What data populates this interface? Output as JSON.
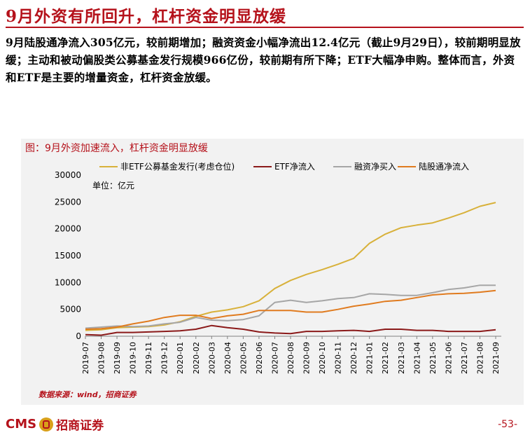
{
  "page": {
    "title": "9月外资有所回升，杠杆资金明显放缓",
    "summary": "9月陆股通净流入305亿元，较前期增加；融资资金小幅净流出12.4亿元（截止9月29日），较前期明显放缓；主动和被动偏股类公募基金发行规模966亿份，较前期有所下降；ETF大幅净申购。整体而言，外资和ETF是主要的增量资金，杠杆资金放缓。",
    "source": "数据来源：wind，招商证券",
    "logo_text": "CMS",
    "logo_name": "招商证券",
    "page_number": "-53-"
  },
  "colors": {
    "accent": "#b5121b",
    "series": [
      "#d8b13a",
      "#8b1a1a",
      "#a6a6a6",
      "#e07b1f"
    ]
  },
  "chart_data": {
    "type": "line",
    "title": "图：9月外资加速流入，杠杆资金明显放缓",
    "unit_label": "单位：亿元",
    "xlabel": "",
    "ylabel": "",
    "ylim": [
      0,
      30000
    ],
    "yticks": [
      0,
      5000,
      10000,
      15000,
      20000,
      25000,
      30000
    ],
    "legend_position": "top",
    "categories": [
      "2019-07",
      "2019-08",
      "2019-09",
      "2019-10",
      "2019-11",
      "2019-12",
      "2020-01",
      "2020-02",
      "2020-03",
      "2020-04",
      "2020-05",
      "2020-06",
      "2020-07",
      "2020-08",
      "2020-09",
      "2020-10",
      "2020-11",
      "2020-12",
      "2021-01",
      "2021-02",
      "2021-03",
      "2021-04",
      "2021-05",
      "2021-06",
      "2021-07",
      "2021-08",
      "2021-09"
    ],
    "series": [
      {
        "name": "非ETF公募基金发行(考虑仓位)",
        "values": [
          1100,
          1200,
          1600,
          1700,
          1800,
          2100,
          2700,
          3700,
          4500,
          4900,
          5500,
          6600,
          8900,
          10400,
          11500,
          12400,
          13400,
          14500,
          17300,
          19000,
          20200,
          20700,
          21100,
          22000,
          23000,
          24200,
          24900
        ]
      },
      {
        "name": "ETF净流入",
        "values": [
          300,
          200,
          700,
          700,
          800,
          900,
          1000,
          1300,
          2000,
          1600,
          1300,
          800,
          600,
          500,
          900,
          900,
          1000,
          1100,
          900,
          1300,
          1300,
          1100,
          1100,
          900,
          900,
          900,
          1200
        ]
      },
      {
        "name": "融资净买入",
        "values": [
          1500,
          1700,
          1900,
          1800,
          1900,
          2300,
          2600,
          3500,
          3000,
          2900,
          3100,
          3800,
          6300,
          6700,
          6300,
          6600,
          7000,
          7200,
          7900,
          7800,
          7600,
          7600,
          8100,
          8700,
          9000,
          9500,
          9500
        ]
      },
      {
        "name": "陆股通净流入",
        "values": [
          1300,
          1400,
          1700,
          2300,
          2800,
          3500,
          3900,
          3900,
          3300,
          3800,
          4100,
          4800,
          4800,
          4800,
          4500,
          4500,
          5000,
          5600,
          6000,
          6500,
          6700,
          7200,
          7700,
          7900,
          8000,
          8200,
          8500
        ]
      }
    ]
  }
}
